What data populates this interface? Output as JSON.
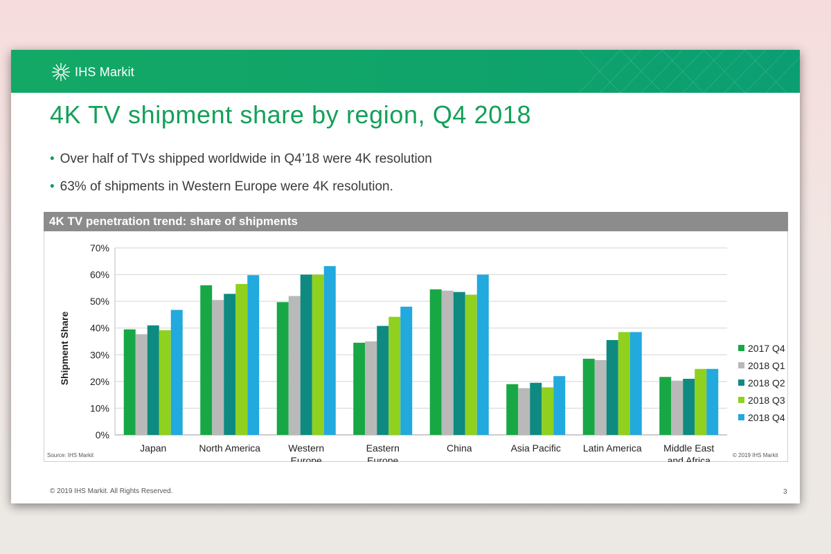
{
  "slide": {
    "logo_text": "IHS Markit",
    "title": "4K TV shipment share by region, Q4 2018",
    "bullets": [
      "Over half of TVs shipped worldwide in Q4’18 were 4K resolution",
      "63% of shipments in Western Europe were 4K resolution."
    ],
    "chart_header": "4K TV penetration trend: share of shipments",
    "source": "Source: IHS Markit",
    "copyright_chart": "© 2019 IHS Markit",
    "footer": "© 2019 IHS Markit. All Rights Reserved.",
    "page_number": "3",
    "brand_colors": {
      "green": "#13a05a",
      "header_gray": "#8c8c8c"
    }
  },
  "chart_data": {
    "type": "bar",
    "title": "4K TV penetration trend: share of shipments",
    "xlabel": "",
    "ylabel": "Shipment Share",
    "ylim": [
      0,
      70
    ],
    "yticks": [
      "0%",
      "10%",
      "20%",
      "30%",
      "40%",
      "50%",
      "60%",
      "70%"
    ],
    "grid": true,
    "legend_position": "right",
    "categories": [
      [
        "Japan"
      ],
      [
        "North America"
      ],
      [
        "Western",
        "Europe"
      ],
      [
        "Eastern",
        "Europe"
      ],
      [
        "China"
      ],
      [
        "Asia Pacific"
      ],
      [
        "Latin America"
      ],
      [
        "Middle East",
        "and Africa"
      ]
    ],
    "series": [
      {
        "name": "2017 Q4",
        "color": "#17a845",
        "values": [
          39.5,
          56,
          49.7,
          34.5,
          54.5,
          19,
          28.5,
          21.7
        ]
      },
      {
        "name": "2018 Q1",
        "color": "#b9b9b9",
        "values": [
          37.7,
          50.5,
          52,
          35,
          54,
          17.5,
          28,
          20.3
        ]
      },
      {
        "name": "2018 Q2",
        "color": "#0e8a80",
        "values": [
          41,
          52.8,
          60,
          40.8,
          53.5,
          19.5,
          35.5,
          21
        ]
      },
      {
        "name": "2018 Q3",
        "color": "#8fd11e",
        "values": [
          39.2,
          56.5,
          60,
          44.2,
          52.5,
          17.8,
          38.5,
          24.7
        ]
      },
      {
        "name": "2018 Q4",
        "color": "#22a9dd",
        "values": [
          46.8,
          59.8,
          63.2,
          48,
          60,
          22,
          38.5,
          24.7
        ]
      }
    ]
  }
}
